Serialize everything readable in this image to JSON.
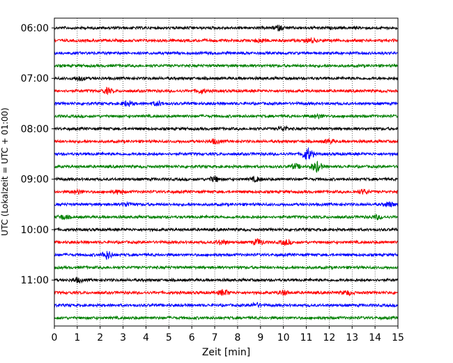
{
  "chart_data": {
    "type": "line",
    "title": "",
    "xlabel": "Zeit  [min]",
    "ylabel": "UTC (Lokalzeit = UTC + 01:00)",
    "xlim": [
      0,
      15
    ],
    "x_ticks": [
      "0",
      "1",
      "2",
      "3",
      "4",
      "5",
      "6",
      "7",
      "8",
      "9",
      "10",
      "11",
      "12",
      "13",
      "14",
      "15"
    ],
    "y_tick_labels": [
      "06:00",
      "07:00",
      "08:00",
      "09:00",
      "10:00",
      "11:00"
    ],
    "grid": "vertical dotted lines at each minute",
    "trace_interval_minutes": 15,
    "color_cycle": [
      "#000000",
      "#ff0000",
      "#0000ff",
      "#008000"
    ],
    "traces": [
      {
        "start": "06:00",
        "color": "#000000",
        "events": [
          {
            "x": 9.8,
            "amp": 1.4
          }
        ]
      },
      {
        "start": "06:15",
        "color": "#ff0000",
        "events": [
          {
            "x": 9.0,
            "amp": 1.2
          },
          {
            "x": 11.2,
            "amp": 1.3
          }
        ]
      },
      {
        "start": "06:30",
        "color": "#0000ff",
        "events": []
      },
      {
        "start": "06:45",
        "color": "#008000",
        "events": []
      },
      {
        "start": "07:00",
        "color": "#000000",
        "events": [
          {
            "x": 1.1,
            "amp": 1.3
          }
        ]
      },
      {
        "start": "07:15",
        "color": "#ff0000",
        "events": [
          {
            "x": 2.3,
            "amp": 1.6
          },
          {
            "x": 6.4,
            "amp": 1.2
          }
        ]
      },
      {
        "start": "07:30",
        "color": "#0000ff",
        "events": [
          {
            "x": 3.2,
            "amp": 1.6
          },
          {
            "x": 4.5,
            "amp": 1.2
          }
        ]
      },
      {
        "start": "07:45",
        "color": "#008000",
        "events": [
          {
            "x": 11.5,
            "amp": 1.2
          }
        ]
      },
      {
        "start": "08:00",
        "color": "#000000",
        "events": [
          {
            "x": 10.0,
            "amp": 1.3
          }
        ]
      },
      {
        "start": "08:15",
        "color": "#ff0000",
        "events": [
          {
            "x": 7.0,
            "amp": 1.3
          },
          {
            "x": 12.0,
            "amp": 1.2
          }
        ]
      },
      {
        "start": "08:30",
        "color": "#0000ff",
        "events": [
          {
            "x": 11.05,
            "amp": 4.0
          }
        ]
      },
      {
        "start": "08:45",
        "color": "#008000",
        "events": [
          {
            "x": 10.5,
            "amp": 1.5
          },
          {
            "x": 11.45,
            "amp": 3.2
          }
        ]
      },
      {
        "start": "09:00",
        "color": "#000000",
        "events": [
          {
            "x": 7.0,
            "amp": 1.6
          },
          {
            "x": 8.8,
            "amp": 1.3
          }
        ]
      },
      {
        "start": "09:15",
        "color": "#ff0000",
        "events": [
          {
            "x": 1.0,
            "amp": 1.2
          },
          {
            "x": 2.8,
            "amp": 1.2
          },
          {
            "x": 13.5,
            "amp": 1.2
          }
        ]
      },
      {
        "start": "09:30",
        "color": "#0000ff",
        "events": [
          {
            "x": 3.2,
            "amp": 1.3
          },
          {
            "x": 14.6,
            "amp": 1.5
          }
        ]
      },
      {
        "start": "09:45",
        "color": "#008000",
        "events": [
          {
            "x": 0.4,
            "amp": 1.3
          },
          {
            "x": 14.1,
            "amp": 1.2
          }
        ]
      },
      {
        "start": "10:00",
        "color": "#000000",
        "events": []
      },
      {
        "start": "10:15",
        "color": "#ff0000",
        "events": [
          {
            "x": 7.3,
            "amp": 1.4
          },
          {
            "x": 8.9,
            "amp": 1.8
          },
          {
            "x": 10.1,
            "amp": 1.5
          }
        ]
      },
      {
        "start": "10:30",
        "color": "#0000ff",
        "events": [
          {
            "x": 2.3,
            "amp": 2.5
          }
        ]
      },
      {
        "start": "10:45",
        "color": "#008000",
        "events": []
      },
      {
        "start": "11:00",
        "color": "#000000",
        "events": [
          {
            "x": 1.0,
            "amp": 1.3
          }
        ]
      },
      {
        "start": "11:15",
        "color": "#ff0000",
        "events": [
          {
            "x": 7.4,
            "amp": 1.8
          },
          {
            "x": 10.0,
            "amp": 1.3
          },
          {
            "x": 12.8,
            "amp": 1.2
          }
        ]
      },
      {
        "start": "11:30",
        "color": "#0000ff",
        "events": [
          {
            "x": 8.8,
            "amp": 1.2
          }
        ]
      },
      {
        "start": "11:45",
        "color": "#008000",
        "events": []
      }
    ]
  }
}
